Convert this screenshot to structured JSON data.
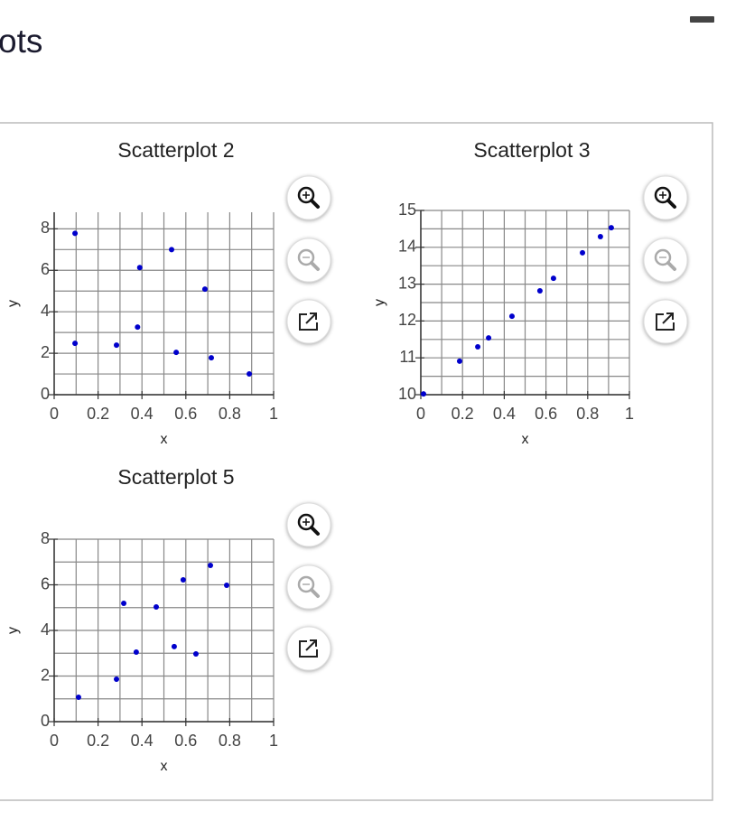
{
  "header": {
    "title": "ots"
  },
  "chart_data": [
    {
      "type": "scatter",
      "title": "Scatterplot 2",
      "xlabel": "x",
      "ylabel": "y",
      "color": "#0000cc",
      "x": [
        0.095,
        0.535,
        0.39,
        0.687,
        0.38,
        0.095,
        0.284,
        0.556,
        0.716,
        0.889
      ],
      "values": [
        7.78,
        7.0,
        6.13,
        5.09,
        3.26,
        2.48,
        2.39,
        2.04,
        1.78,
        1.0
      ],
      "xlim": [
        0,
        1
      ],
      "ylim": [
        0,
        8.8
      ],
      "xticks": [
        0,
        0.2,
        0.4,
        0.6,
        0.8,
        1
      ],
      "yticks": [
        0,
        2,
        4,
        6,
        8
      ],
      "xgrid": [
        0,
        0.1,
        0.2,
        0.3,
        0.4,
        0.5,
        0.6,
        0.7,
        0.8,
        0.9,
        1
      ],
      "ygrid": [
        0,
        1,
        2,
        3,
        4,
        5,
        6,
        7,
        8
      ]
    },
    {
      "type": "scatter",
      "title": "Scatterplot 3",
      "xlabel": "x",
      "ylabel": "y",
      "color": "#0000cc",
      "x": [
        0.013,
        0.186,
        0.273,
        0.325,
        0.437,
        0.571,
        0.636,
        0.775,
        0.861,
        0.913
      ],
      "values": [
        10.02,
        10.91,
        11.3,
        11.54,
        12.13,
        12.82,
        13.16,
        13.85,
        14.29,
        14.53
      ],
      "xlim": [
        0,
        1
      ],
      "ylim": [
        10,
        15
      ],
      "xticks": [
        0,
        0.2,
        0.4,
        0.6,
        0.8,
        1
      ],
      "yticks": [
        10,
        11,
        12,
        13,
        14,
        15
      ],
      "xgrid": [
        0,
        0.1,
        0.2,
        0.3,
        0.4,
        0.5,
        0.6,
        0.7,
        0.8,
        0.9,
        1
      ],
      "ygrid": [
        10,
        10.5,
        11,
        11.5,
        12,
        12.5,
        13,
        13.5,
        14,
        14.5,
        15
      ]
    },
    {
      "type": "scatter",
      "title": "Scatterplot 5",
      "xlabel": "x",
      "ylabel": "y",
      "color": "#0000cc",
      "x": [
        0.111,
        0.284,
        0.317,
        0.374,
        0.465,
        0.547,
        0.588,
        0.646,
        0.712,
        0.786
      ],
      "values": [
        1.07,
        1.86,
        5.19,
        3.05,
        5.03,
        3.29,
        6.22,
        2.97,
        6.85,
        5.98
      ],
      "xlim": [
        0,
        1
      ],
      "ylim": [
        0,
        8
      ],
      "xticks": [
        0,
        0.2,
        0.4,
        0.6,
        0.8,
        1
      ],
      "yticks": [
        0,
        2,
        4,
        6,
        8
      ],
      "xgrid": [
        0,
        0.1,
        0.2,
        0.3,
        0.4,
        0.5,
        0.6,
        0.7,
        0.8,
        0.9,
        1
      ],
      "ygrid": [
        0,
        1,
        2,
        3,
        4,
        5,
        6,
        7,
        8
      ]
    }
  ]
}
